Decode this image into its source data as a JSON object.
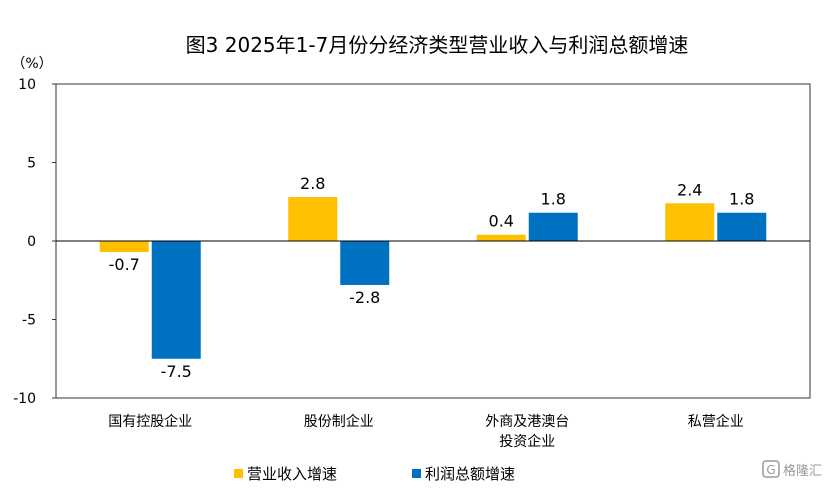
{
  "chart_data": {
    "type": "bar",
    "title": "图3  2025年1-7月份分经济类型营业收入与利润总额增速",
    "ylabel": "（%）",
    "ylim": [
      -10,
      10
    ],
    "yticks": [
      10,
      5,
      0,
      -5,
      -10
    ],
    "categories": [
      [
        "国有控股企业"
      ],
      [
        "股份制企业"
      ],
      [
        "外商及港澳台",
        "投资企业"
      ],
      [
        "私营企业"
      ]
    ],
    "series": [
      {
        "name": "营业收入增速",
        "color": "#FFC000",
        "values": [
          -0.7,
          2.8,
          0.4,
          2.4
        ],
        "labels": [
          "-0.7",
          "2.8",
          "0.4",
          "2.4"
        ]
      },
      {
        "name": "利润总额增速",
        "color": "#0070C0",
        "values": [
          -7.5,
          -2.8,
          1.8,
          1.8
        ],
        "labels": [
          "-7.5",
          "-2.8",
          "1.8",
          "1.8"
        ]
      }
    ],
    "legend_position": "bottom",
    "grid": false
  },
  "watermark": {
    "icon": "gelonghui-logo-icon",
    "text": "格隆汇"
  }
}
